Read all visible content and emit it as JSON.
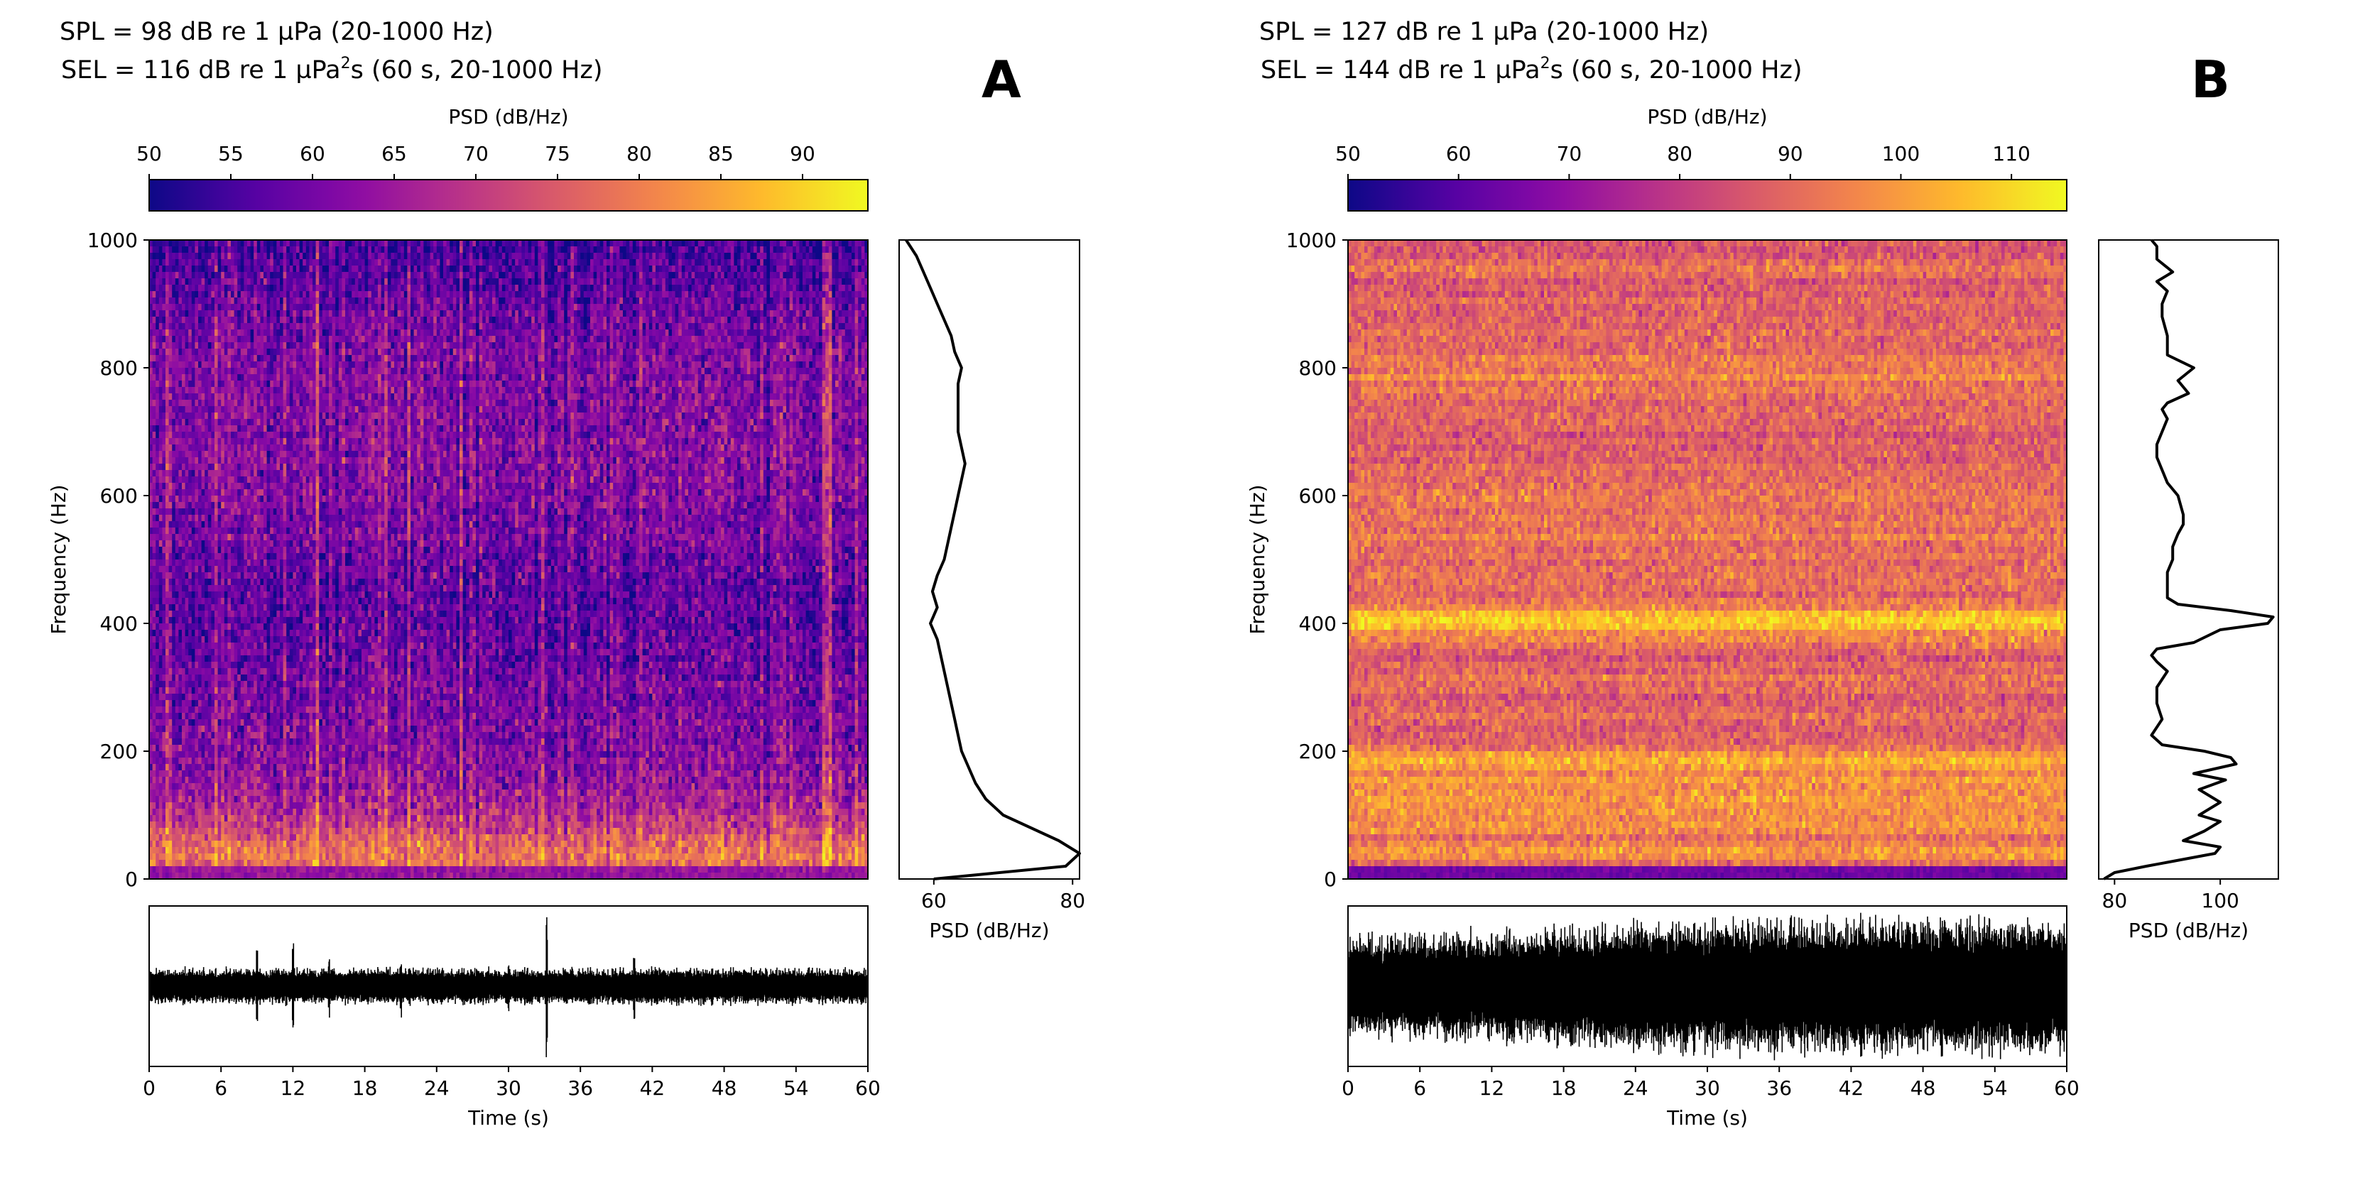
{
  "chart_data": [
    {
      "panel_label": "A",
      "type": "heatmap",
      "annotation": {
        "spl_line": "SPL = 98 dB re 1 µPa (20-1000 Hz)",
        "sel_prefix": "SEL = 116 dB re 1 µPa",
        "sel_sup": "2",
        "sel_suffix": "s (60 s, 20-1000 Hz)"
      },
      "colorbar": {
        "label": "PSD (dB/Hz)",
        "colormap": "plasma",
        "range": [
          50,
          94
        ],
        "ticks": [
          50,
          55,
          60,
          65,
          70,
          75,
          80,
          85,
          90
        ],
        "tick_labels": [
          "50",
          "55",
          "60",
          "65",
          "70",
          "75",
          "80",
          "85",
          "90"
        ]
      },
      "spectrogram": {
        "ylabel": "Frequency (Hz)",
        "ylim": [
          0,
          1000
        ],
        "yticks": [
          0,
          200,
          400,
          600,
          800,
          1000
        ],
        "ytick_labels": [
          "0",
          "200",
          "400",
          "600",
          "800",
          "1000"
        ],
        "xlim": [
          0,
          60
        ],
        "base_level_db": 62,
        "low_freq_energy_db": 80,
        "noise_db": 6
      },
      "psd_profile": {
        "xlabel": "PSD (dB/Hz)",
        "xlim": [
          55,
          81
        ],
        "xticks": [
          60,
          80
        ],
        "xtick_labels": [
          "60",
          "80"
        ],
        "freq": [
          0,
          20,
          40,
          60,
          80,
          100,
          125,
          150,
          175,
          200,
          225,
          250,
          275,
          300,
          325,
          350,
          375,
          400,
          425,
          450,
          475,
          500,
          525,
          550,
          575,
          600,
          625,
          650,
          675,
          700,
          725,
          750,
          775,
          800,
          825,
          850,
          875,
          900,
          925,
          950,
          975,
          1000
        ],
        "psd": [
          60,
          79,
          81,
          78,
          74,
          70,
          67.5,
          66,
          65,
          64,
          63.5,
          63,
          62.5,
          62,
          61.5,
          61,
          60.5,
          59.5,
          60.5,
          59.8,
          60.5,
          61.5,
          62,
          62.5,
          63,
          63.5,
          64,
          64.5,
          64,
          63.5,
          63.5,
          63.5,
          63.5,
          64,
          63,
          62.5,
          61.5,
          60.5,
          59.5,
          58.5,
          57.5,
          56
        ]
      },
      "waveform": {
        "xlabel": "Time (s)",
        "xlim": [
          0,
          60
        ],
        "xticks": [
          0,
          6,
          12,
          18,
          24,
          30,
          36,
          42,
          48,
          54,
          60
        ],
        "xtick_labels": [
          "0",
          "6",
          "12",
          "18",
          "24",
          "30",
          "36",
          "42",
          "48",
          "54",
          "60"
        ],
        "ylim": [
          -1,
          1
        ],
        "envelope_amplitude": 0.2,
        "spikes": [
          {
            "t": 9,
            "a": 0.45
          },
          {
            "t": 12,
            "a": 0.62
          },
          {
            "t": 15,
            "a": 0.4
          },
          {
            "t": 21,
            "a": 0.4
          },
          {
            "t": 30,
            "a": 0.35
          },
          {
            "t": 33.2,
            "a": 0.95
          },
          {
            "t": 40.5,
            "a": 0.45
          }
        ]
      }
    },
    {
      "panel_label": "B",
      "type": "heatmap",
      "annotation": {
        "spl_line": "SPL = 127 dB re 1 µPa (20-1000 Hz)",
        "sel_prefix": "SEL = 144 dB re 1 µPa",
        "sel_sup": "2",
        "sel_suffix": "s (60 s, 20-1000 Hz)"
      },
      "colorbar": {
        "label": "PSD (dB/Hz)",
        "colormap": "plasma",
        "range": [
          50,
          115
        ],
        "ticks": [
          50,
          60,
          70,
          80,
          90,
          100,
          110
        ],
        "tick_labels": [
          "50",
          "60",
          "70",
          "80",
          "90",
          "100",
          "110"
        ]
      },
      "spectrogram": {
        "ylabel": "Frequency (Hz)",
        "ylim": [
          0,
          1000
        ],
        "yticks": [
          0,
          200,
          400,
          600,
          800,
          1000
        ],
        "ytick_labels": [
          "0",
          "200",
          "400",
          "600",
          "800",
          "1000"
        ],
        "xlim": [
          0,
          60
        ],
        "base_level_db": 86,
        "noise_db": 7
      },
      "psd_profile": {
        "xlabel": "PSD (dB/Hz)",
        "xlim": [
          77,
          111
        ],
        "xticks": [
          80,
          100
        ],
        "xtick_labels": [
          "80",
          "100"
        ],
        "freq": [
          0,
          10,
          20,
          40,
          50,
          60,
          75,
          90,
          100,
          120,
          140,
          155,
          165,
          180,
          190,
          200,
          210,
          225,
          250,
          275,
          300,
          325,
          340,
          350,
          360,
          370,
          390,
          400,
          410,
          420,
          430,
          440,
          450,
          460,
          480,
          500,
          520,
          540,
          555,
          570,
          600,
          620,
          640,
          660,
          680,
          700,
          720,
          735,
          745,
          760,
          780,
          800,
          820,
          850,
          880,
          900,
          920,
          935,
          950,
          970,
          990,
          1000
        ],
        "psd": [
          78,
          80,
          86,
          99,
          100,
          93,
          97,
          100,
          96,
          100,
          96,
          101,
          95,
          103,
          102,
          97,
          89,
          87,
          89,
          88,
          88,
          90,
          88,
          87,
          88,
          95,
          100,
          109,
          110,
          102,
          92,
          90,
          90,
          90,
          90,
          91,
          91,
          92,
          93,
          93,
          92,
          90,
          89,
          88,
          88,
          89,
          90,
          89,
          90,
          94,
          92,
          95,
          90,
          90,
          89,
          89,
          90,
          88,
          91,
          88,
          88,
          87
        ]
      },
      "waveform": {
        "xlabel": "Time (s)",
        "xlim": [
          0,
          60
        ],
        "xticks": [
          0,
          6,
          12,
          18,
          24,
          30,
          36,
          42,
          48,
          54,
          60
        ],
        "xtick_labels": [
          "0",
          "6",
          "12",
          "18",
          "24",
          "30",
          "36",
          "42",
          "48",
          "54",
          "60"
        ],
        "ylim": [
          -1,
          1
        ],
        "envelope_amplitude_start": 0.55,
        "envelope_amplitude_end": 0.75,
        "spikes": [
          {
            "t": 17.5,
            "a": 0.9
          },
          {
            "t": 28,
            "a": 0.85
          },
          {
            "t": 44.5,
            "a": 0.95
          }
        ]
      }
    }
  ]
}
